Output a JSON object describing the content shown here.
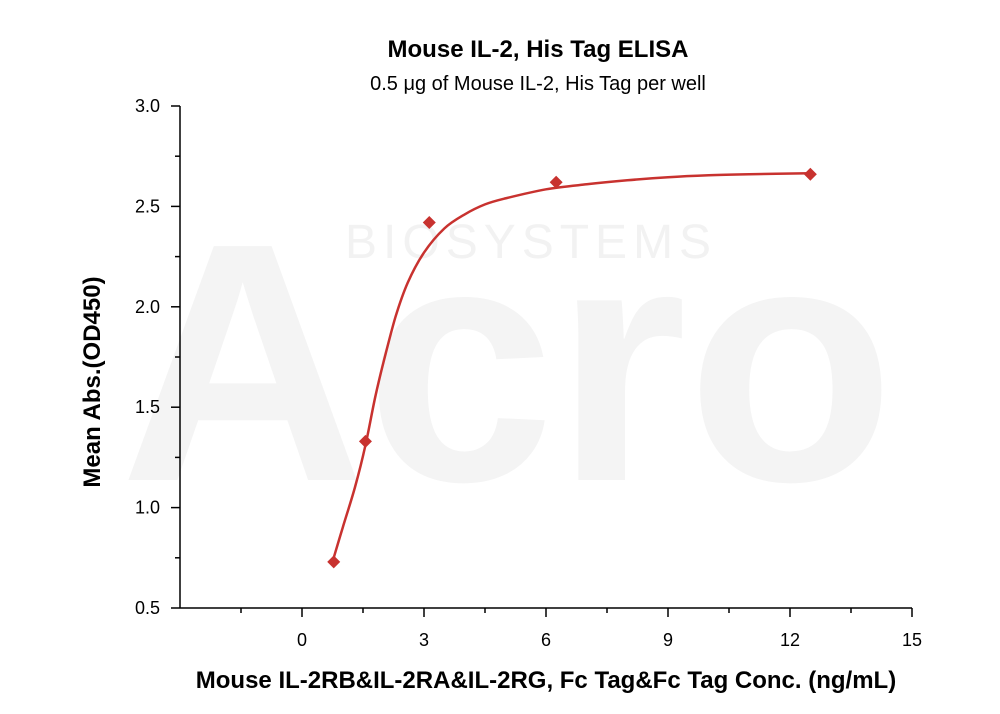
{
  "chart_data": {
    "type": "scatter",
    "title": "Mouse IL-2, His Tag ELISA",
    "subtitle": "0.5 μg of Mouse IL-2, His Tag per well",
    "xlabel": "Mouse IL-2RB&IL-2RA&IL-2RG, Fc Tag&Fc Tag Conc. (ng/mL)",
    "ylabel": "Mean Abs.(OD450)",
    "xlim": [
      -3,
      15
    ],
    "ylim": [
      0.5,
      3.0
    ],
    "x_ticks": [
      0,
      3,
      6,
      9,
      12,
      15
    ],
    "y_ticks": [
      0.5,
      1.0,
      1.5,
      2.0,
      2.5,
      3.0
    ],
    "x_tick_labels": [
      "0",
      "3",
      "6",
      "9",
      "12",
      "15"
    ],
    "y_tick_labels": [
      "0.5",
      "1.0",
      "1.5",
      "2.0",
      "2.5",
      "3.0"
    ],
    "grid": false,
    "legend": "none",
    "series": [
      {
        "marker": "diamond",
        "x": [
          0.78,
          1.56,
          3.13,
          6.25,
          12.5
        ],
        "y": [
          0.73,
          1.33,
          2.42,
          2.62,
          2.66
        ]
      }
    ],
    "fit_curve": {
      "x": [
        0.78,
        1.0,
        1.3,
        1.56,
        1.8,
        2.0,
        2.3,
        2.6,
        3.0,
        3.5,
        4.0,
        4.5,
        5.0,
        6.0,
        7.0,
        8.0,
        9.0,
        10.0,
        11.0,
        12.5
      ],
      "y": [
        0.75,
        0.9,
        1.1,
        1.31,
        1.55,
        1.72,
        1.95,
        2.12,
        2.27,
        2.39,
        2.46,
        2.51,
        2.54,
        2.585,
        2.61,
        2.63,
        2.645,
        2.655,
        2.66,
        2.665
      ]
    },
    "colors": {
      "series": "#c8322f",
      "axis": "#000000",
      "watermark": "#f2f2f2"
    },
    "watermark": {
      "logo": "Acro",
      "text": "BIOSYSTEMS"
    }
  }
}
